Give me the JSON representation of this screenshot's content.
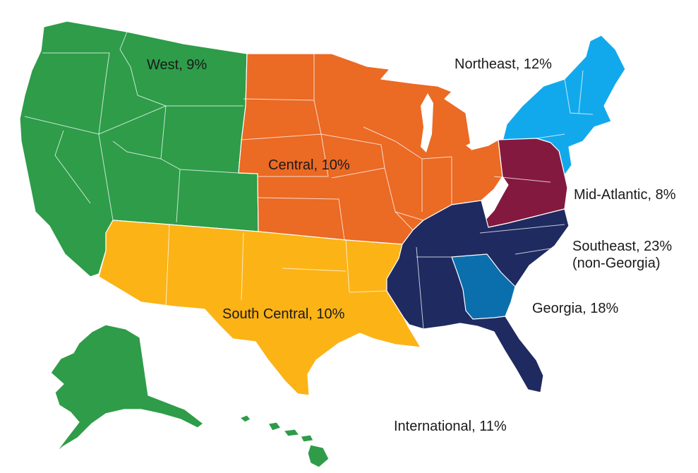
{
  "map": {
    "regions": [
      {
        "id": "west",
        "label": "West, 9%",
        "color": "#2e9c49"
      },
      {
        "id": "central",
        "label": "Central, 10%",
        "color": "#eb6a24"
      },
      {
        "id": "northeast",
        "label": "Northeast, 12%",
        "color": "#12a9ec"
      },
      {
        "id": "mid_atlantic",
        "label": "Mid-Atlantic, 8%",
        "color": "#84193f"
      },
      {
        "id": "southeast",
        "label": "Southeast, 23%",
        "sublabel": "(non-Georgia)",
        "color": "#1f2a60"
      },
      {
        "id": "georgia",
        "label": "Georgia, 18%",
        "color": "#0b6fae"
      },
      {
        "id": "south_central",
        "label": "South Central, 10%",
        "color": "#fbb316"
      },
      {
        "id": "international",
        "label": "International, 11%"
      }
    ]
  }
}
